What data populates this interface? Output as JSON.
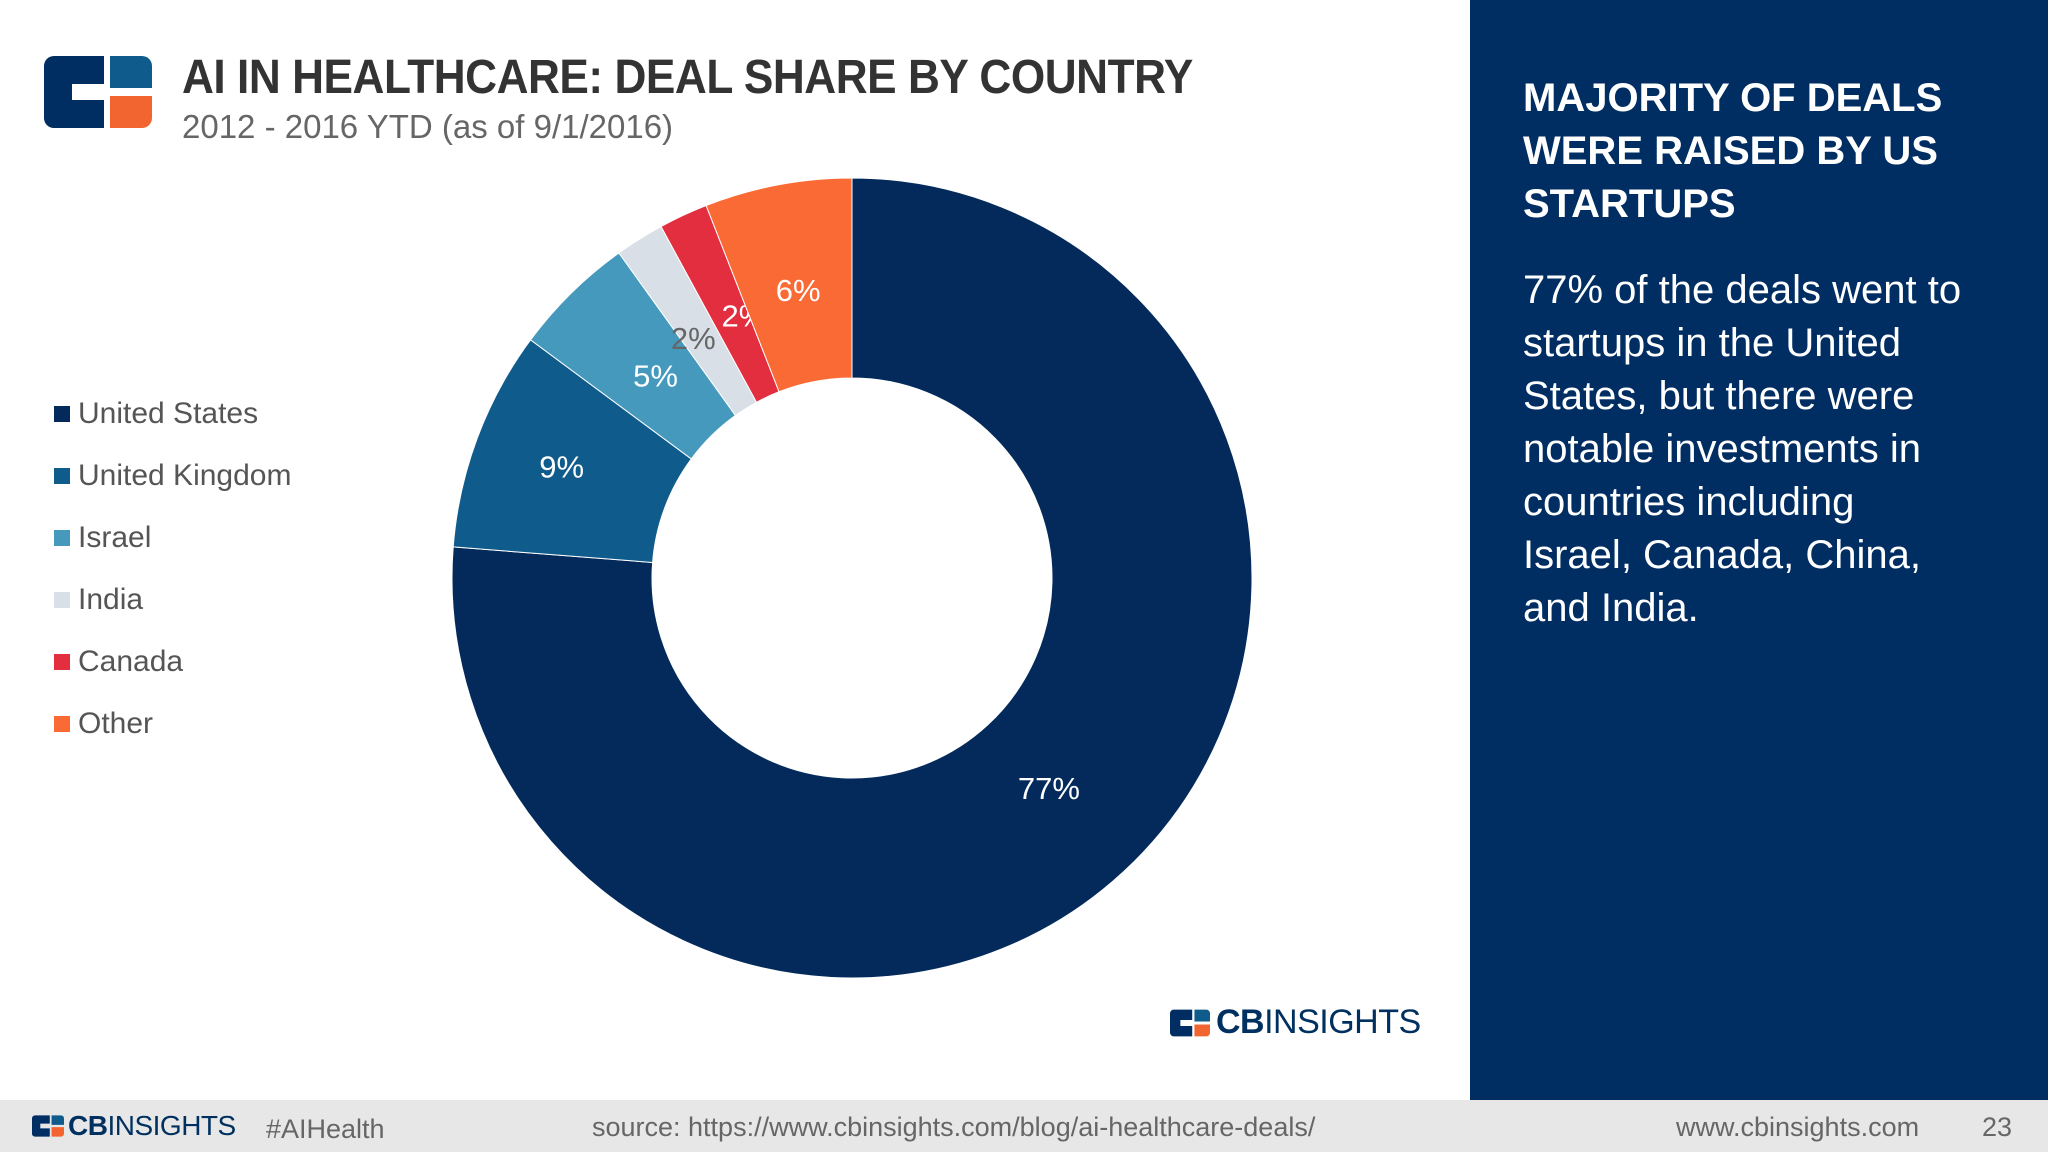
{
  "header": {
    "title": "AI IN HEALTHCARE: DEAL SHARE BY COUNTRY",
    "subtitle": "2012 - 2016 YTD (as of 9/1/2016)"
  },
  "brand": {
    "logo_icon": "cb-insights-logo-icon",
    "name_bold": "CB",
    "name_light": "INSIGHTS",
    "colors": {
      "navy": "#002d62",
      "orange": "#f26531",
      "blue": "#0f5c8c",
      "light_blue": "#4599bd"
    }
  },
  "chart_data": {
    "type": "pie",
    "style": "donut",
    "categories": [
      "United States",
      "United Kingdom",
      "Israel",
      "India",
      "Canada",
      "Other"
    ],
    "values": [
      77,
      9,
      5,
      2,
      2,
      6
    ],
    "unit": "%",
    "data_labels": [
      "77%",
      "9%",
      "5%",
      "2%",
      "2%",
      "6%"
    ],
    "colors": [
      "#032a5b",
      "#0f5c8c",
      "#4599bd",
      "#d9dfe6",
      "#e22e3f",
      "#fa6a34"
    ],
    "label_colors": [
      "#ffffff",
      "#ffffff",
      "#ffffff",
      "#666666",
      "#ffffff",
      "#ffffff"
    ],
    "start": "12 o'clock, clockwise",
    "legend_placement": "left"
  },
  "side_panel": {
    "heading_lines": [
      "MAJORITY OF DEALS",
      "WERE RAISED BY US",
      "STARTUPS"
    ],
    "body_lines": [
      "77% of the deals went to",
      "startups in the United",
      "States, but there were",
      "notable investments in",
      "countries including",
      "Israel, Canada, China,",
      "and India."
    ]
  },
  "footer": {
    "hashtag": "#AIHealth",
    "source": "source: https://www.cbinsights.com/blog/ai-healthcare-deals/",
    "website": "www.cbinsights.com",
    "page_number": "23"
  }
}
